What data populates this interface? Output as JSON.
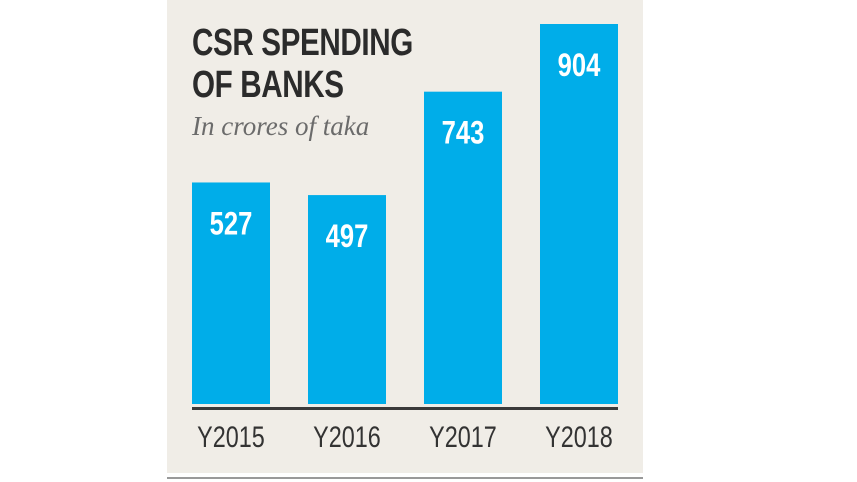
{
  "chart_data": {
    "type": "bar",
    "title_lines": [
      "CSR SPENDING",
      "OF BANKS"
    ],
    "subtitle": "In crores of taka",
    "categories": [
      "Y2015",
      "Y2016",
      "Y2017",
      "Y2018"
    ],
    "values": [
      527,
      497,
      743,
      904
    ],
    "xlabel": "",
    "ylabel": "",
    "ylim": [
      0,
      904
    ],
    "grid": false,
    "bar_color": "#00ade9",
    "label_color": "#ffffff",
    "axis_color": "#3a3a3a"
  }
}
